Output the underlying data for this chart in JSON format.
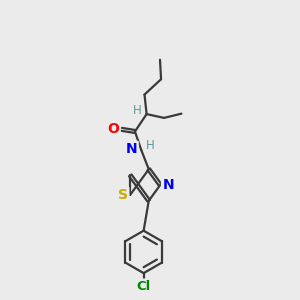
{
  "bg_color": "#ebebeb",
  "bond_color": "#3a3a3a",
  "atom_colors": {
    "O": "#ff0000",
    "N": "#0000ee",
    "S": "#ccaa00",
    "Cl": "#008800",
    "H": "#5a9a9a",
    "C": "#3a3a3a"
  },
  "font_size": 9.5,
  "linewidth": 1.6,
  "xlim": [
    0,
    10
  ],
  "ylim": [
    0,
    14
  ]
}
